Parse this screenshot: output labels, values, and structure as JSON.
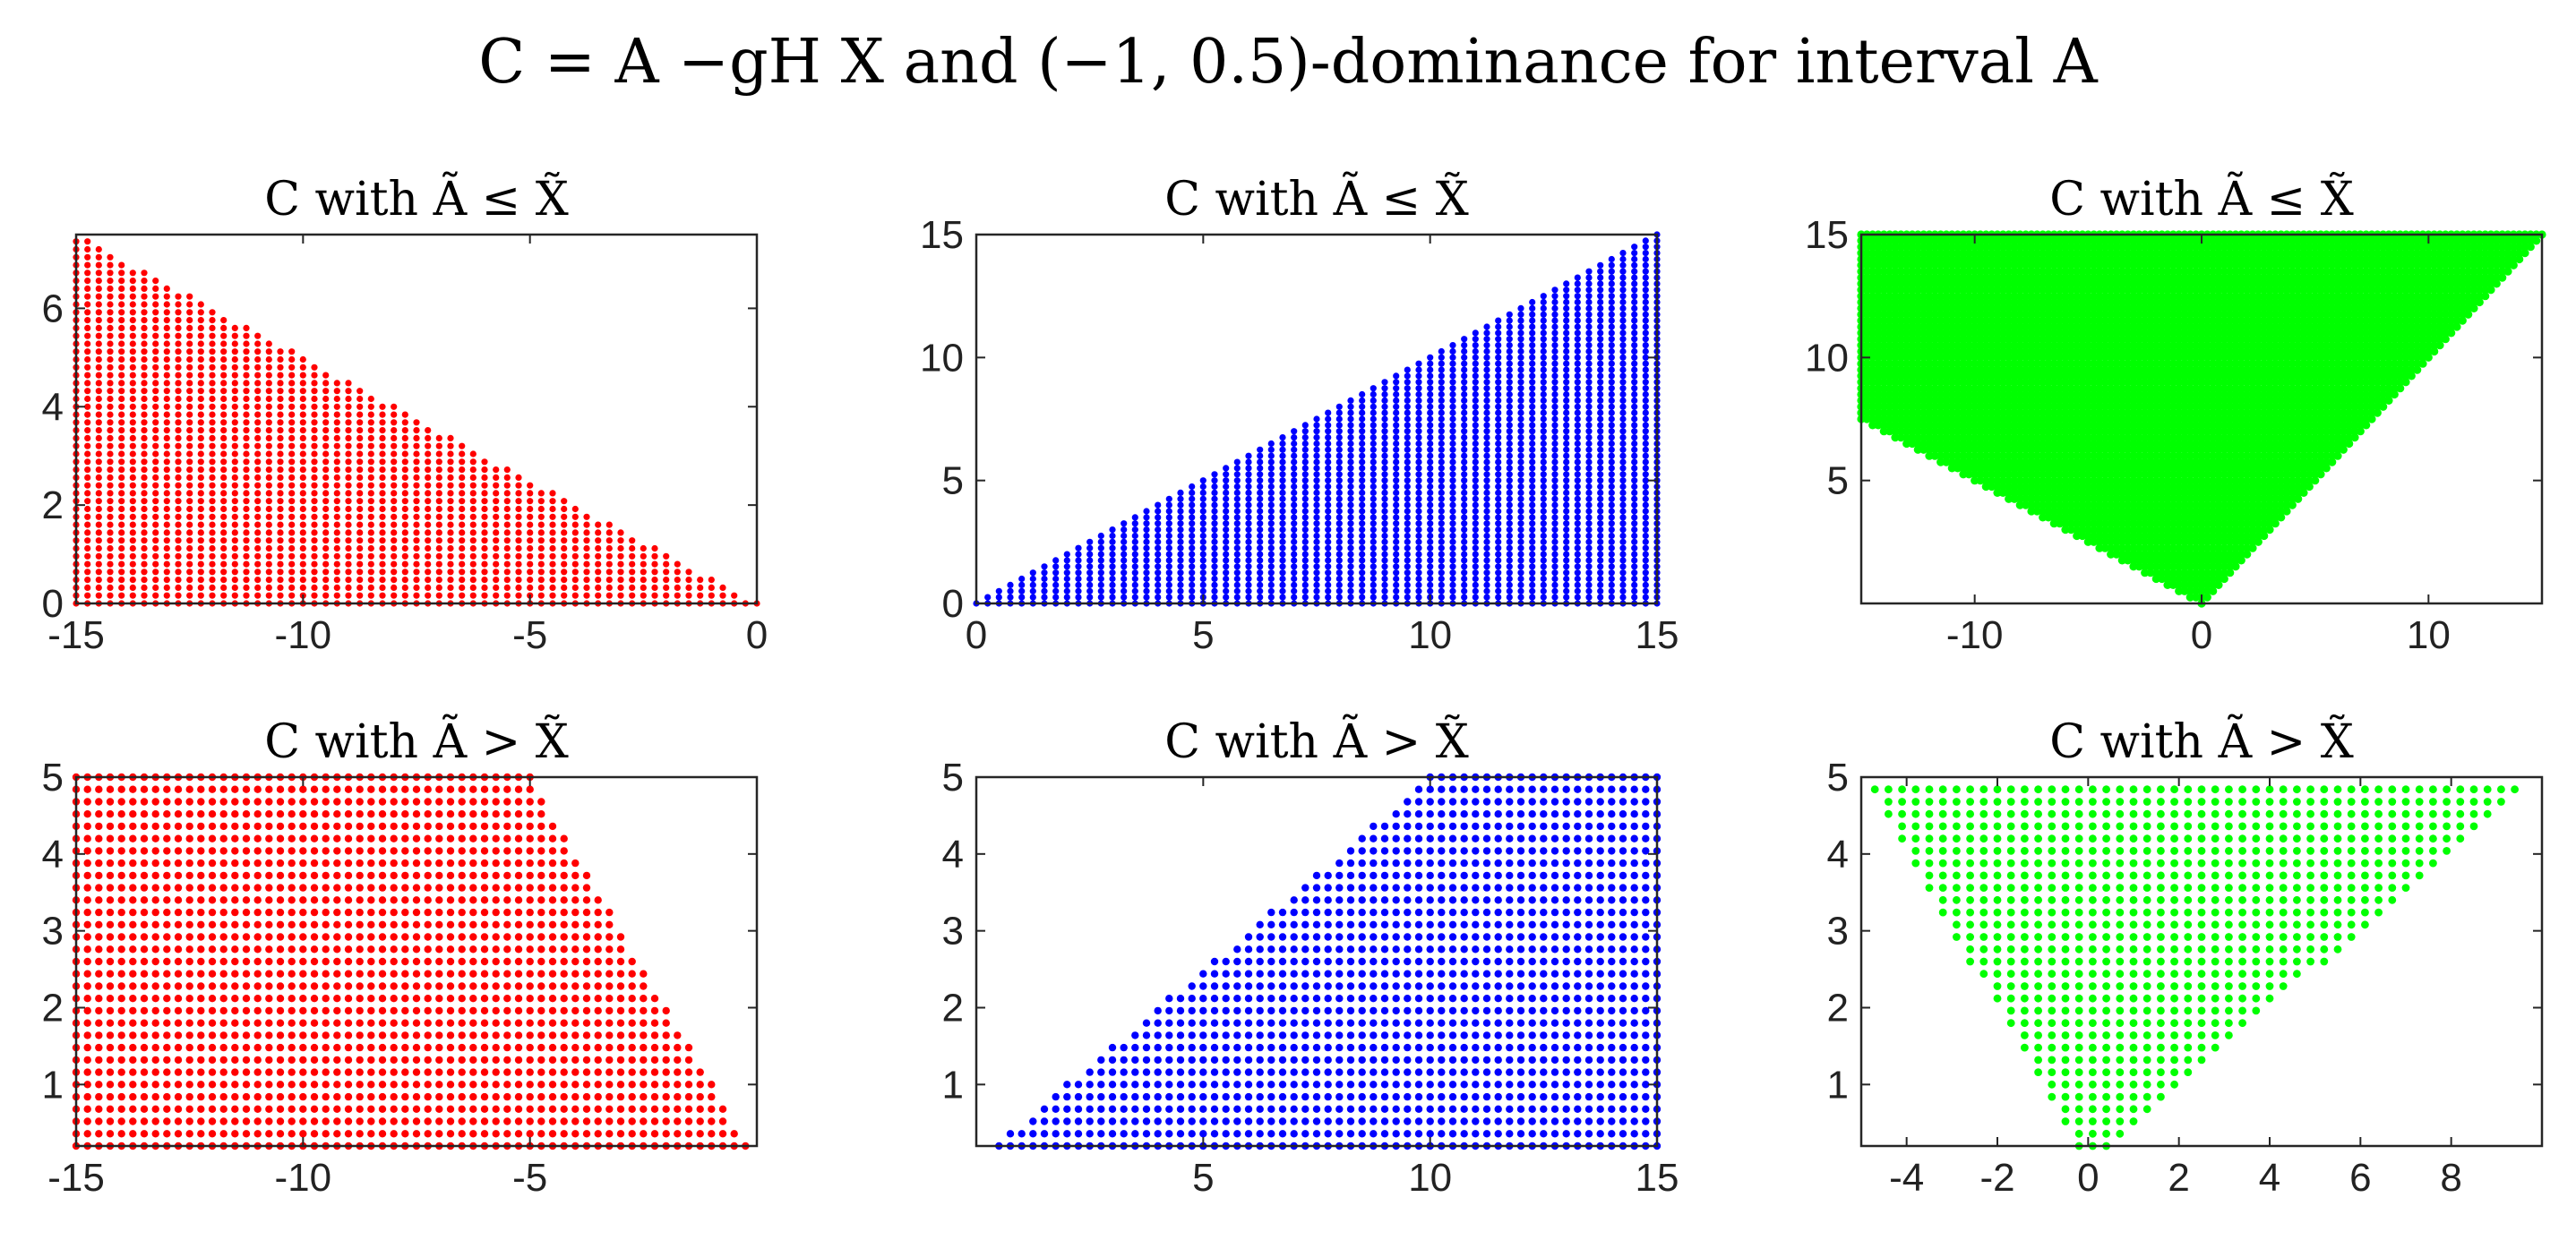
{
  "figure_title": "C = A −gH X and (−1, 0.5)-dominance for interval A",
  "chart_data": [
    {
      "type": "scatter",
      "title": "C with Ã ≤ X̃",
      "color": "#ff0000",
      "region": "x from -15 to 0, y from 0 to -x/2 (triangle)",
      "x_range": [
        -15,
        0
      ],
      "y_range": [
        0,
        7.5
      ],
      "xlim": [
        -15,
        0
      ],
      "ylim": [
        0,
        7.5
      ],
      "xticks": [
        -15,
        -10,
        -5,
        0
      ],
      "yticks": [
        0,
        2,
        4,
        6
      ],
      "xtick_labels": [
        "-15",
        "-10",
        "-5",
        "0"
      ],
      "ytick_labels": [
        "0",
        "2",
        "4",
        "6"
      ],
      "grid": false
    },
    {
      "type": "scatter",
      "title": "C with Ã ≤ X̃",
      "color": "#0000ff",
      "region": "x from 0 to 15, y from 0 to x (triangle)",
      "x_range": [
        0,
        15
      ],
      "y_range": [
        0,
        15
      ],
      "xlim": [
        0,
        15
      ],
      "ylim": [
        0,
        15
      ],
      "xticks": [
        0,
        5,
        10,
        15
      ],
      "yticks": [
        0,
        5,
        10,
        15
      ],
      "xtick_labels": [
        "0",
        "5",
        "10",
        "15"
      ],
      "ytick_labels": [
        "0",
        "5",
        "10",
        "15"
      ],
      "grid": false
    },
    {
      "type": "scatter",
      "title": "C with Ã ≤ X̃",
      "color": "#00ff00",
      "region": "filled region x from -15 to 15, y from max(-x/2, x) to 15",
      "x_range": [
        -15,
        15
      ],
      "y_range": [
        0,
        15
      ],
      "xlim": [
        -15,
        15
      ],
      "ylim": [
        0,
        15
      ],
      "xticks": [
        -10,
        0,
        10
      ],
      "yticks": [
        5,
        10,
        15
      ],
      "xtick_labels": [
        "-10",
        "0",
        "10"
      ],
      "ytick_labels": [
        "5",
        "10",
        "15"
      ],
      "grid": false
    },
    {
      "type": "scatter",
      "title": "C with Ã > X̃",
      "color": "#ff0000",
      "region": "x from -15 to 0, y from 0.2 to min(5, -x)",
      "x_range": [
        -15,
        0
      ],
      "y_range": [
        0.2,
        5
      ],
      "xlim": [
        -15,
        0
      ],
      "ylim": [
        0.2,
        5
      ],
      "xticks": [
        -15,
        -10,
        -5
      ],
      "yticks": [
        1,
        2,
        3,
        4,
        5
      ],
      "xtick_labels": [
        "-15",
        "-10",
        "-5"
      ],
      "ytick_labels": [
        "1",
        "2",
        "3",
        "4",
        "5"
      ],
      "grid": false
    },
    {
      "type": "scatter",
      "title": "C with Ã > X̃",
      "color": "#0000ff",
      "region": "x from 0 to 15, y from 0.2 to min(5, x/2)",
      "x_range": [
        0,
        15
      ],
      "y_range": [
        0.2,
        5
      ],
      "xlim": [
        0,
        15
      ],
      "ylim": [
        0.2,
        5
      ],
      "xticks": [
        5,
        10,
        15
      ],
      "yticks": [
        1,
        2,
        3,
        4,
        5
      ],
      "xtick_labels": [
        "5",
        "10",
        "15"
      ],
      "ytick_labels": [
        "1",
        "2",
        "3",
        "4",
        "5"
      ],
      "grid": false
    },
    {
      "type": "scatter",
      "title": "C with Ã > X̃",
      "color": "#00ff00",
      "region": "inverted triangle: y from 0.2 to 5, x from -y to 2y",
      "x_range": [
        -5,
        10
      ],
      "y_range": [
        0.2,
        5
      ],
      "xlim": [
        -5,
        10
      ],
      "ylim": [
        0.2,
        5
      ],
      "xticks": [
        -4,
        -2,
        0,
        2,
        4,
        6,
        8
      ],
      "yticks": [
        1,
        2,
        3,
        4,
        5
      ],
      "xtick_labels": [
        "-4",
        "-2",
        "0",
        "2",
        "4",
        "6",
        "8"
      ],
      "ytick_labels": [
        "1",
        "2",
        "3",
        "4",
        "5"
      ],
      "grid": false
    }
  ]
}
